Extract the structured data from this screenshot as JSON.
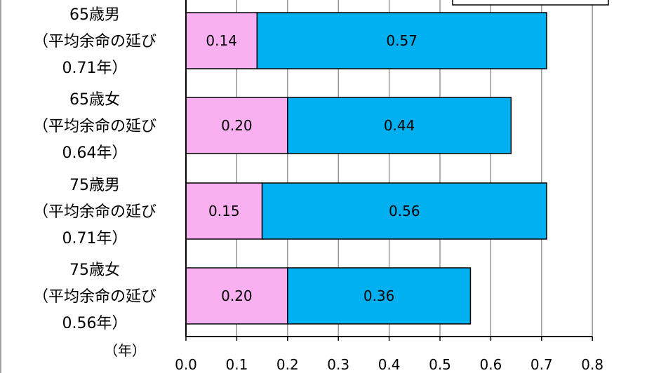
{
  "chart_data": {
    "type": "bar",
    "orientation": "horizontal",
    "stacked": true,
    "categories": [
      [
        "65歳男",
        "（平均余命の延び",
        "0.71年）"
      ],
      [
        "65歳女",
        "（平均余命の延び",
        "0.64年）"
      ],
      [
        "75歳男",
        "（平均余命の延び",
        "0.71年）"
      ],
      [
        "75歳女",
        "（平均余命の延び",
        "0.56年）"
      ]
    ],
    "series": [
      {
        "color": "#F9B0F0",
        "values": [
          0.14,
          0.2,
          0.15,
          0.2
        ],
        "labels": [
          "0.14",
          "0.20",
          "0.15",
          "0.20"
        ]
      },
      {
        "color": "#00B0F0",
        "values": [
          0.57,
          0.44,
          0.56,
          0.36
        ],
        "labels": [
          "0.57",
          "0.44",
          "0.56",
          "0.36"
        ]
      }
    ],
    "xlim": [
      0,
      0.8
    ],
    "xticks": [
      "0.0",
      "0.1",
      "0.2",
      "0.3",
      "0.4",
      "0.5",
      "0.6",
      "0.7",
      "0.8"
    ],
    "xunit": "（年）",
    "grid": true
  }
}
